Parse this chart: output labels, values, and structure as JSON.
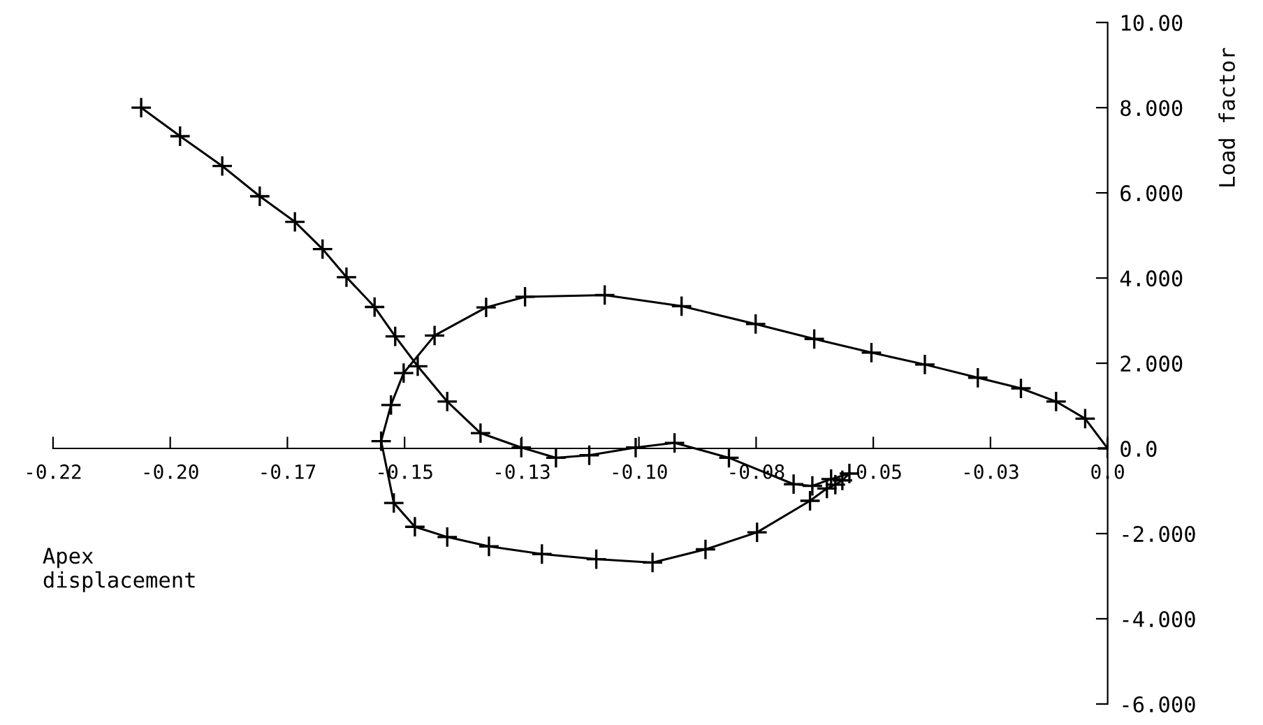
{
  "chart_data": {
    "type": "line",
    "xlabel": "Apex\ndisplacement",
    "ylabel": "Load factor",
    "xlim": [
      -0.225,
      0
    ],
    "ylim": [
      -6,
      10
    ],
    "xticks": [
      {
        "value": -0.225,
        "label": "-0.22"
      },
      {
        "value": -0.2,
        "label": "-0.20"
      },
      {
        "value": -0.175,
        "label": "-0.17"
      },
      {
        "value": -0.15,
        "label": "-0.15"
      },
      {
        "value": -0.125,
        "label": "-0.13"
      },
      {
        "value": -0.1,
        "label": "-0.10"
      },
      {
        "value": -0.075,
        "label": "-0.08"
      },
      {
        "value": -0.05,
        "label": "-0.05"
      },
      {
        "value": -0.025,
        "label": "-0.03"
      },
      {
        "value": 0,
        "label": "0.0"
      }
    ],
    "yticks": [
      {
        "value": 10,
        "label": "10.00"
      },
      {
        "value": 8,
        "label": "8.000"
      },
      {
        "value": 6,
        "label": "6.000"
      },
      {
        "value": 4,
        "label": "4.000"
      },
      {
        "value": 2,
        "label": "2.000"
      },
      {
        "value": 0,
        "label": "0.0"
      },
      {
        "value": -2,
        "label": "-2.000"
      },
      {
        "value": -4,
        "label": "-4.000"
      },
      {
        "value": -6,
        "label": "-6.000"
      }
    ],
    "marker": "cross",
    "line_style": "solid",
    "grid": false,
    "legend": false,
    "series": [
      {
        "color": "#000000",
        "x": [
          0,
          -0.0048,
          -0.011,
          -0.0185,
          -0.0277,
          -0.039,
          -0.0504,
          -0.0626,
          -0.0751,
          -0.0909,
          -0.1073,
          -0.1243,
          -0.1326,
          -0.1436,
          -0.1502,
          -0.1529,
          -0.155,
          -0.1523,
          -0.1478,
          -0.1409,
          -0.132,
          -0.1207,
          -0.1091,
          -0.0971,
          -0.0858,
          -0.0748,
          -0.0635,
          -0.0599,
          -0.0581,
          -0.0566,
          -0.0551,
          -0.059,
          -0.063,
          -0.067,
          -0.0808,
          -0.0924,
          -0.1007,
          -0.1106,
          -0.1177,
          -0.1251,
          -0.1338,
          -0.1409,
          -0.1472,
          -0.152,
          -0.1564,
          -0.1624,
          -0.1675,
          -0.1734,
          -0.1809,
          -0.1889,
          -0.1979,
          -0.2062
        ],
        "values": [
          0,
          0.7,
          1.1,
          1.41,
          1.66,
          1.97,
          2.25,
          2.57,
          2.92,
          3.34,
          3.6,
          3.56,
          3.31,
          2.65,
          1.77,
          1.02,
          0.17,
          -1.28,
          -1.84,
          -2.08,
          -2.3,
          -2.48,
          -2.6,
          -2.68,
          -2.37,
          -1.97,
          -1.23,
          -0.94,
          -0.85,
          -0.75,
          -0.59,
          -0.72,
          -0.88,
          -0.84,
          -0.22,
          0.13,
          0.02,
          -0.16,
          -0.22,
          0.02,
          0.36,
          1.1,
          1.93,
          2.63,
          3.32,
          4.02,
          4.68,
          5.32,
          5.92,
          6.63,
          7.33,
          8.0
        ]
      }
    ]
  }
}
